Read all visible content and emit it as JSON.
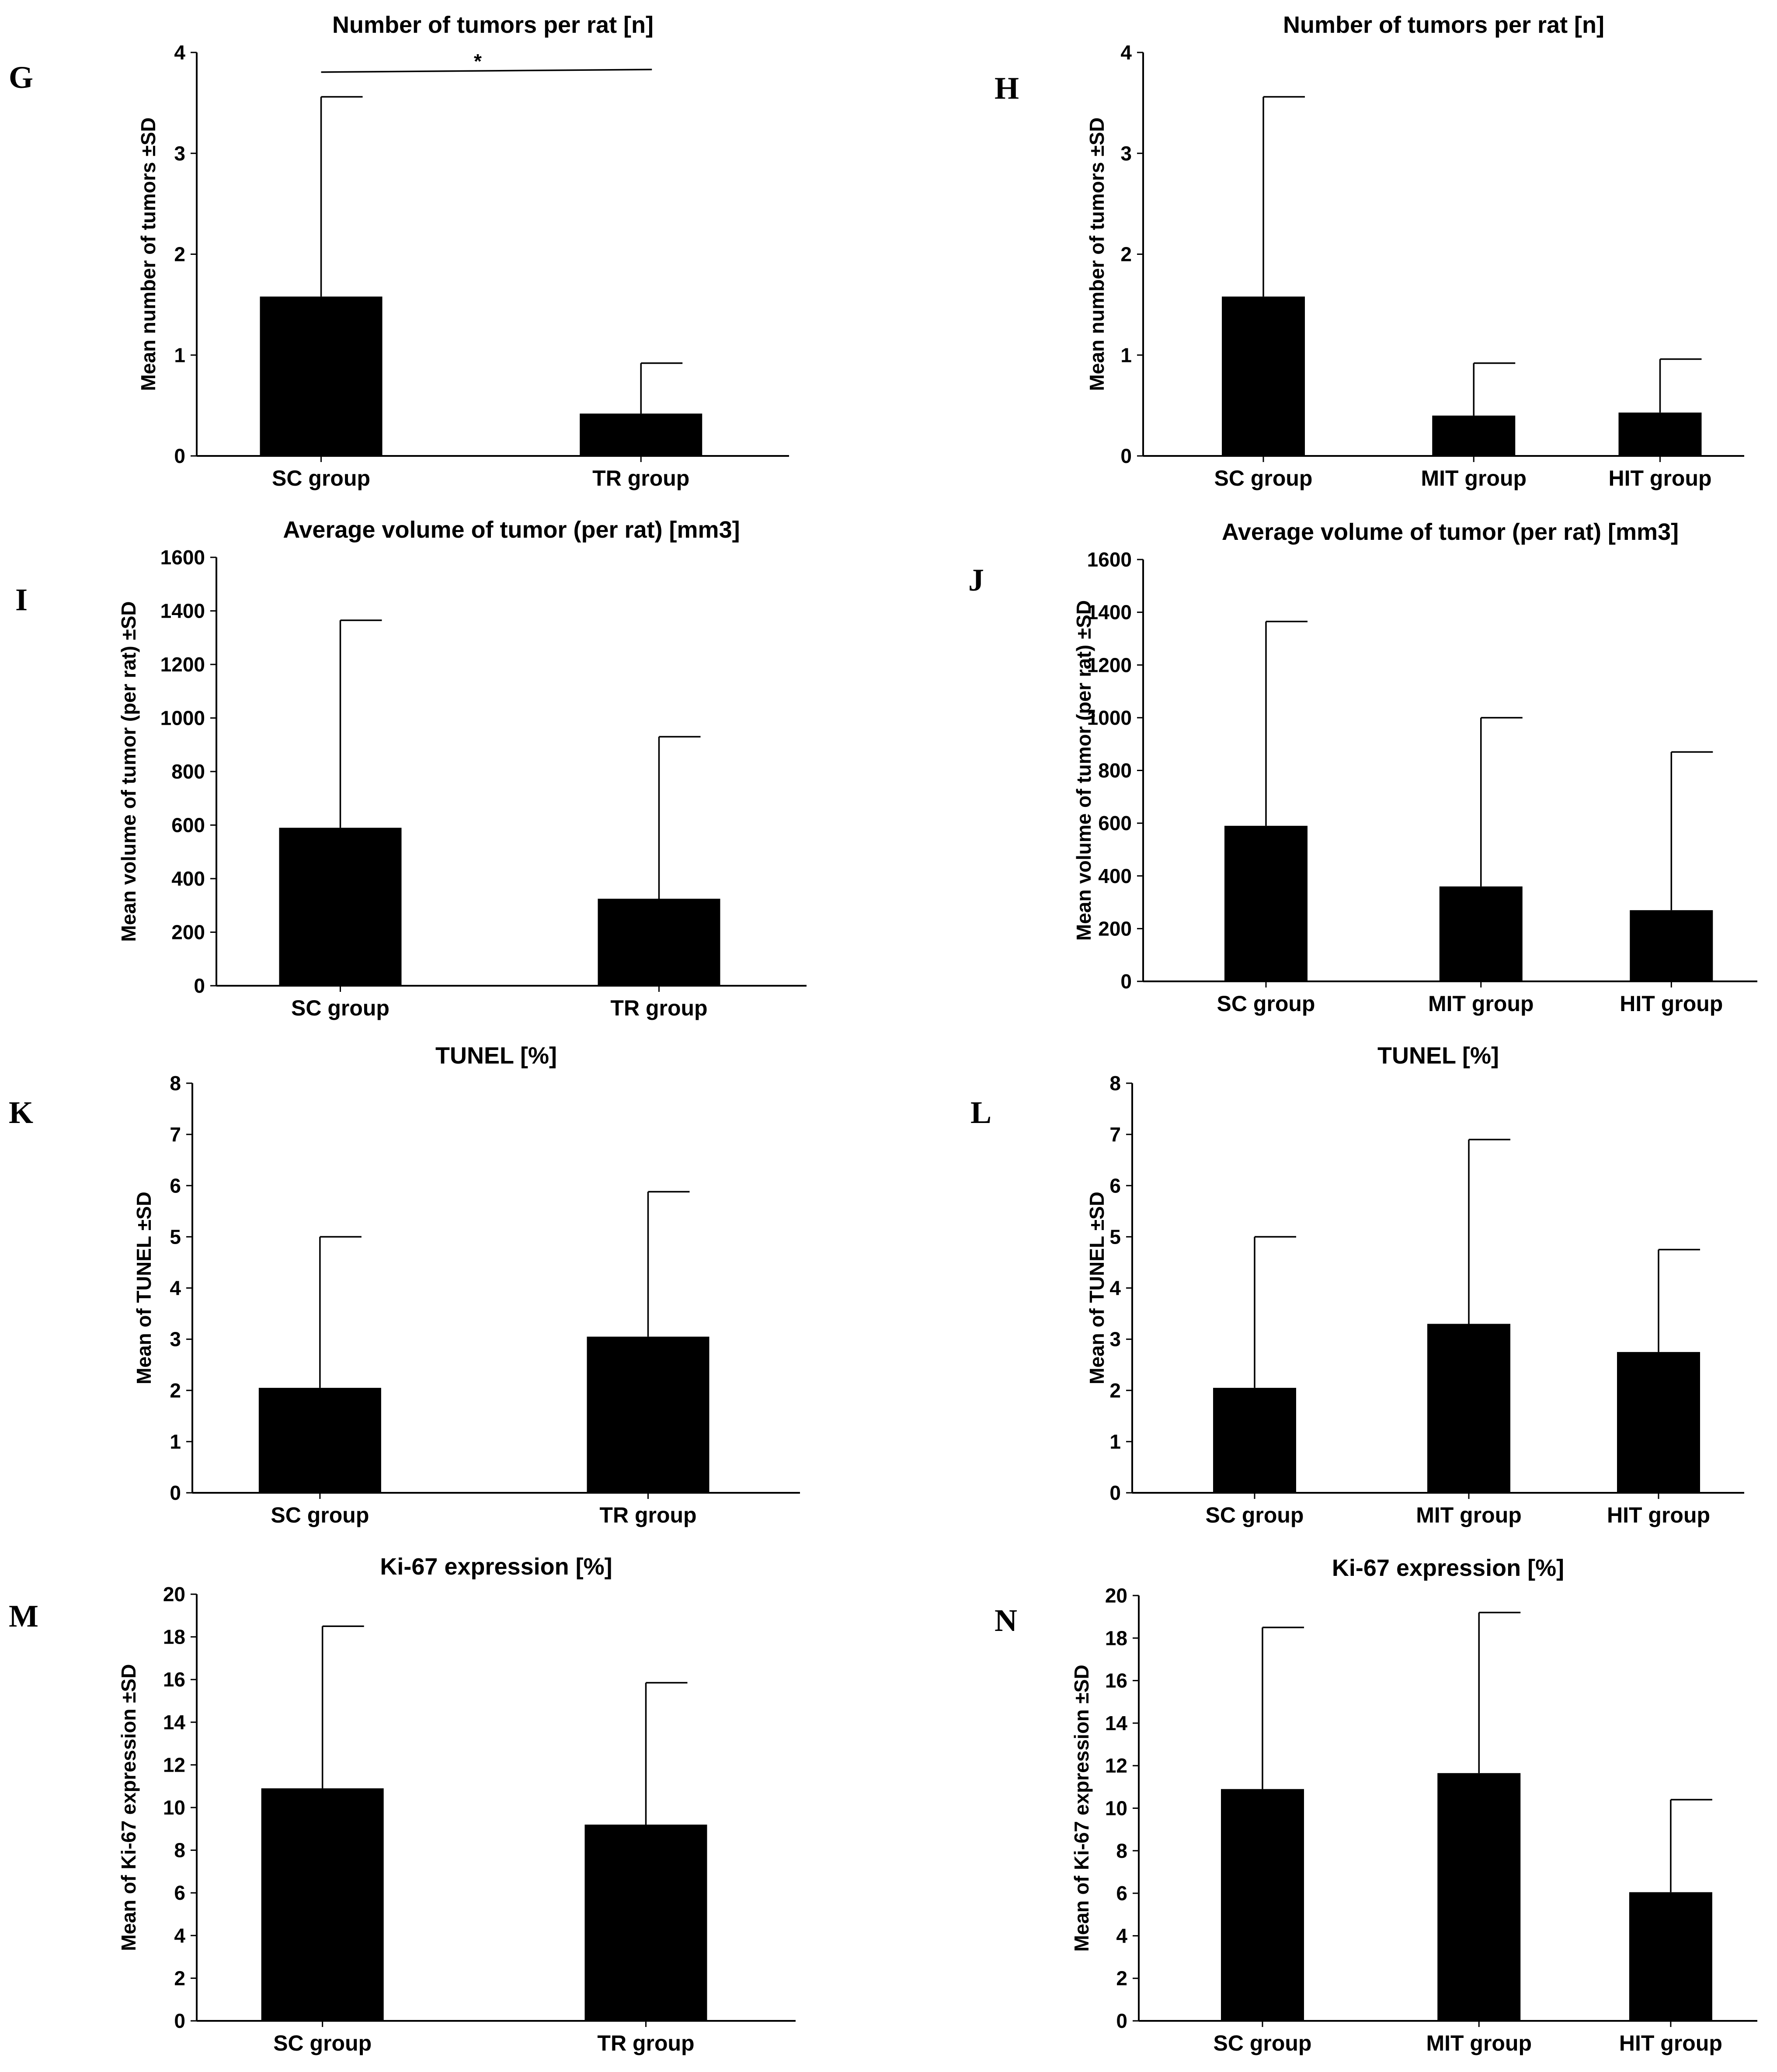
{
  "chart_data": [
    {
      "panel": "G",
      "type": "bar",
      "title": "Number of tumors per rat [n]",
      "xlabel": "",
      "ylabel": "Mean number of tumors ±SD",
      "categories": [
        "SC group",
        "TR group"
      ],
      "values": [
        1.58,
        0.42
      ],
      "errors": [
        1.98,
        0.5
      ],
      "ylim": [
        0,
        4
      ],
      "yticks": [
        0,
        1,
        2,
        3,
        4
      ],
      "significance": {
        "from": 0,
        "to": 1,
        "label": "*"
      }
    },
    {
      "panel": "H",
      "type": "bar",
      "title": "Number of tumors per rat [n]",
      "xlabel": "",
      "ylabel": "Mean number of tumors ±SD",
      "categories": [
        "SC group",
        "MIT group",
        "HIT group"
      ],
      "values": [
        1.58,
        0.4,
        0.43
      ],
      "errors": [
        1.98,
        0.52,
        0.53
      ],
      "ylim": [
        0,
        4
      ],
      "yticks": [
        0,
        1,
        2,
        3,
        4
      ]
    },
    {
      "panel": "I",
      "type": "bar",
      "title": "Average volume of tumor (per rat) [mm3]",
      "xlabel": "",
      "ylabel": "Mean volume of tumor (per rat) ±SD",
      "categories": [
        "SC group",
        "TR group"
      ],
      "values": [
        590,
        325
      ],
      "errors": [
        775,
        605
      ],
      "ylim": [
        0,
        1600
      ],
      "yticks": [
        0,
        200,
        400,
        600,
        800,
        1000,
        1200,
        1400,
        1600
      ]
    },
    {
      "panel": "J",
      "type": "bar",
      "title": "Average volume of tumor (per rat) [mm3]",
      "xlabel": "",
      "ylabel": "Mean volume of tumor (per rat) ±SD",
      "categories": [
        "SC group",
        "MIT group",
        "HIT group"
      ],
      "values": [
        590,
        360,
        270
      ],
      "errors": [
        775,
        640,
        600
      ],
      "ylim": [
        0,
        1600
      ],
      "yticks": [
        0,
        200,
        400,
        600,
        800,
        1000,
        1200,
        1400,
        1600
      ]
    },
    {
      "panel": "K",
      "type": "bar",
      "title": "TUNEL [%]",
      "xlabel": "",
      "ylabel": "Mean of TUNEL ±SD",
      "categories": [
        "SC group",
        "TR group"
      ],
      "values": [
        2.05,
        3.05
      ],
      "errors": [
        2.95,
        2.83
      ],
      "ylim": [
        0,
        8
      ],
      "yticks": [
        0,
        1,
        2,
        3,
        4,
        5,
        6,
        7,
        8
      ]
    },
    {
      "panel": "L",
      "type": "bar",
      "title": "TUNEL [%]",
      "xlabel": "",
      "ylabel": "Mean of TUNEL ±SD",
      "categories": [
        "SC group",
        "MIT group",
        "HIT group"
      ],
      "values": [
        2.05,
        3.3,
        2.75
      ],
      "errors": [
        2.95,
        3.6,
        2.0
      ],
      "ylim": [
        0,
        8
      ],
      "yticks": [
        0,
        1,
        2,
        3,
        4,
        5,
        6,
        7,
        8
      ]
    },
    {
      "panel": "M",
      "type": "bar",
      "title": "Ki-67 expression [%]",
      "xlabel": "",
      "ylabel": "Mean of Ki-67 expression ±SD",
      "categories": [
        "SC group",
        "TR group"
      ],
      "values": [
        10.9,
        9.2
      ],
      "errors": [
        7.6,
        6.65
      ],
      "ylim": [
        0,
        20
      ],
      "yticks": [
        0,
        2,
        4,
        6,
        8,
        10,
        12,
        14,
        16,
        18,
        20
      ]
    },
    {
      "panel": "N",
      "type": "bar",
      "title": "Ki-67 expression [%]",
      "xlabel": "",
      "ylabel": "Mean of Ki-67 expression ±SD",
      "categories": [
        "SC group",
        "MIT group",
        "HIT group"
      ],
      "values": [
        10.9,
        11.65,
        6.05
      ],
      "errors": [
        7.6,
        7.55,
        4.35
      ],
      "ylim": [
        0,
        20
      ],
      "yticks": [
        0,
        2,
        4,
        6,
        8,
        10,
        12,
        14,
        16,
        18,
        20
      ]
    }
  ]
}
